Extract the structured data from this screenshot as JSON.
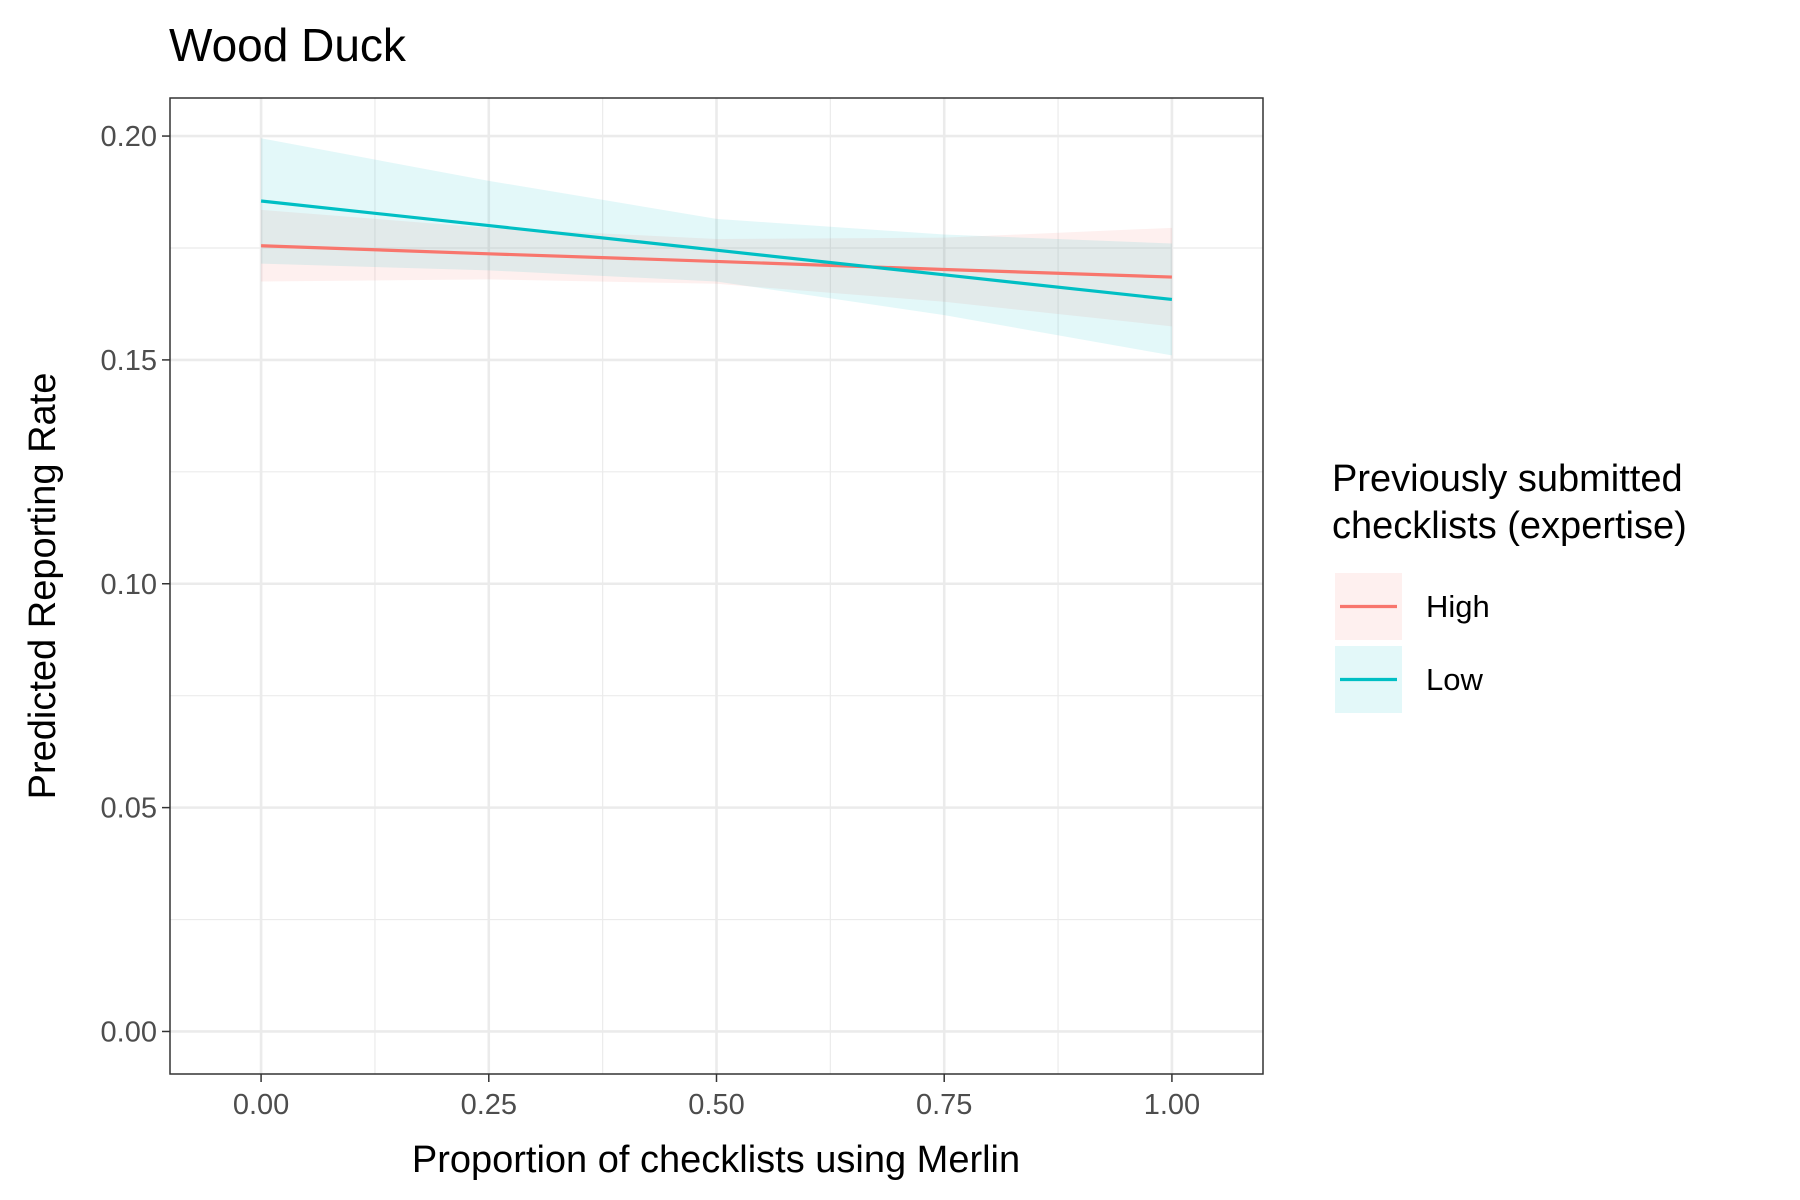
{
  "chart_data": {
    "type": "line",
    "title": "Wood Duck",
    "xlabel": "Proportion of checklists using Merlin",
    "ylabel": "Predicted Reporting Rate",
    "xlim": [
      -0.1,
      1.1
    ],
    "ylim": [
      -0.0095,
      0.2085
    ],
    "x_ticks": [
      0.0,
      0.25,
      0.5,
      0.75,
      1.0
    ],
    "x_tick_labels": [
      "0.00",
      "0.25",
      "0.50",
      "0.75",
      "1.00"
    ],
    "y_ticks": [
      0.0,
      0.05,
      0.1,
      0.15,
      0.2
    ],
    "y_tick_labels": [
      "0.00",
      "0.05",
      "0.10",
      "0.15",
      "0.20"
    ],
    "grid": true,
    "legend": {
      "title": "Previously submitted\nchecklists (expertise)",
      "position": "right"
    },
    "series": [
      {
        "name": "High",
        "color": "#F8766D",
        "x": [
          0.0,
          0.25,
          0.5,
          0.75,
          1.0
        ],
        "values": [
          0.1755,
          0.1737,
          0.172,
          0.1702,
          0.1685
        ],
        "lower": [
          0.1675,
          0.168,
          0.167,
          0.163,
          0.1575
        ],
        "upper": [
          0.1835,
          0.1795,
          0.177,
          0.1773,
          0.1795
        ]
      },
      {
        "name": "Low",
        "color": "#00BFC4",
        "x": [
          0.0,
          0.25,
          0.5,
          0.75,
          1.0
        ],
        "values": [
          0.1855,
          0.18,
          0.1745,
          0.169,
          0.1635
        ],
        "lower": [
          0.1715,
          0.17,
          0.1675,
          0.16,
          0.151
        ],
        "upper": [
          0.1995,
          0.19,
          0.1815,
          0.178,
          0.176
        ]
      }
    ]
  }
}
